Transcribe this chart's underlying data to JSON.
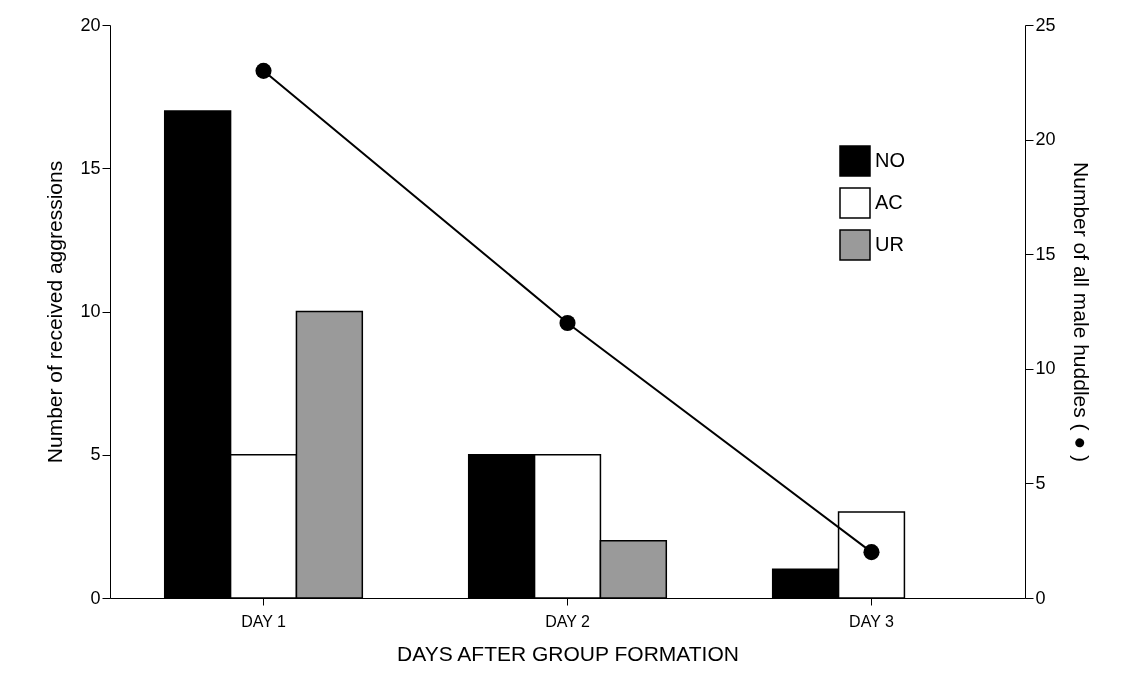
{
  "chart_data": {
    "type": "bar",
    "xlabel": "DAYS AFTER GROUP FORMATION",
    "ylabel": "Number of received aggressions",
    "y2label": "Number of all male huddles ( ● )",
    "categories": [
      "DAY 1",
      "DAY 2",
      "DAY 3"
    ],
    "series": [
      {
        "name": "NO",
        "color": "#000000",
        "values": [
          17,
          5,
          1
        ]
      },
      {
        "name": "AC",
        "color": "#ffffff",
        "values": [
          5,
          5,
          3
        ]
      },
      {
        "name": "UR",
        "color": "#9a9a9a",
        "values": [
          10,
          2,
          null
        ]
      },
      {
        "type": "line",
        "axis": "y2",
        "color": "#000000",
        "values": [
          23,
          12,
          2
        ]
      }
    ],
    "ylim": [
      0,
      20
    ],
    "yticks": [
      0,
      5,
      10,
      15,
      20
    ],
    "y2lim": [
      0,
      25
    ],
    "y2ticks": [
      0,
      5,
      10,
      15,
      20,
      25
    ],
    "grid": false,
    "legend": "top right",
    "marker": "circle",
    "line_style": "solid"
  }
}
